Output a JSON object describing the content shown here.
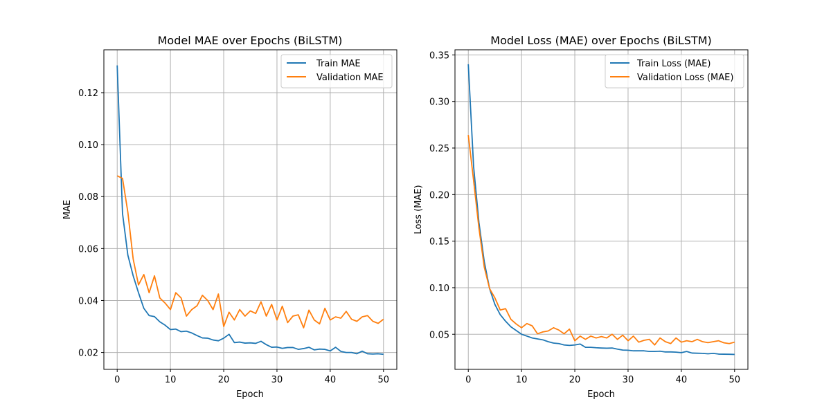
{
  "chart_data": [
    {
      "type": "line",
      "title": "Model MAE over Epochs (BiLSTM)",
      "xlabel": "Epoch",
      "ylabel": "MAE",
      "xlim": [
        -2.5,
        52.5
      ],
      "ylim": [
        0.0135,
        0.1365
      ],
      "xticks": [
        0,
        10,
        20,
        30,
        40,
        50
      ],
      "xtick_labels": [
        "0",
        "10",
        "20",
        "30",
        "40",
        "50"
      ],
      "yticks": [
        0.02,
        0.04,
        0.06,
        0.08,
        0.1,
        0.12
      ],
      "ytick_labels": [
        "0.02",
        "0.04",
        "0.06",
        "0.08",
        "0.10",
        "0.12"
      ],
      "grid": true,
      "legend_position": "top-right",
      "series": [
        {
          "name": "Train MAE",
          "color": "#1f77b4",
          "x": [
            0,
            1,
            2,
            3,
            4,
            5,
            6,
            7,
            8,
            9,
            10,
            11,
            12,
            13,
            14,
            15,
            16,
            17,
            18,
            19,
            20,
            21,
            22,
            23,
            24,
            25,
            26,
            27,
            28,
            29,
            30,
            31,
            32,
            33,
            34,
            35,
            36,
            37,
            38,
            39,
            40,
            41,
            42,
            43,
            44,
            45,
            46,
            47,
            48,
            49,
            50
          ],
          "y": [
            0.1305,
            0.0735,
            0.0575,
            0.0495,
            0.043,
            0.037,
            0.0342,
            0.0338,
            0.0318,
            0.0305,
            0.0288,
            0.029,
            0.028,
            0.0282,
            0.0275,
            0.0265,
            0.0256,
            0.0255,
            0.0248,
            0.0245,
            0.0255,
            0.027,
            0.0238,
            0.024,
            0.0236,
            0.0237,
            0.0235,
            0.0243,
            0.023,
            0.022,
            0.0221,
            0.0216,
            0.0219,
            0.0219,
            0.0212,
            0.0215,
            0.022,
            0.021,
            0.0213,
            0.0212,
            0.0206,
            0.022,
            0.0204,
            0.02,
            0.02,
            0.0195,
            0.0205,
            0.0195,
            0.0194,
            0.0195,
            0.0193
          ]
        },
        {
          "name": "Validation MAE",
          "color": "#ff7f0e",
          "x": [
            0,
            1,
            2,
            3,
            4,
            5,
            6,
            7,
            8,
            9,
            10,
            11,
            12,
            13,
            14,
            15,
            16,
            17,
            18,
            19,
            20,
            21,
            22,
            23,
            24,
            25,
            26,
            27,
            28,
            29,
            30,
            31,
            32,
            33,
            34,
            35,
            36,
            37,
            38,
            39,
            40,
            41,
            42,
            43,
            44,
            45,
            46,
            47,
            48,
            49,
            50
          ],
          "y": [
            0.088,
            0.087,
            0.074,
            0.056,
            0.046,
            0.05,
            0.043,
            0.0495,
            0.041,
            0.039,
            0.0365,
            0.043,
            0.041,
            0.034,
            0.0365,
            0.038,
            0.042,
            0.04,
            0.0365,
            0.0425,
            0.03,
            0.0355,
            0.0325,
            0.0365,
            0.034,
            0.036,
            0.035,
            0.0395,
            0.034,
            0.0385,
            0.0325,
            0.0378,
            0.0315,
            0.034,
            0.0345,
            0.0295,
            0.0363,
            0.0325,
            0.031,
            0.037,
            0.0325,
            0.0337,
            0.0332,
            0.0358,
            0.0328,
            0.032,
            0.0337,
            0.0342,
            0.032,
            0.0312,
            0.0328
          ]
        }
      ]
    },
    {
      "type": "line",
      "title": "Model Loss (MAE) over Epochs (BiLSTM)",
      "xlabel": "Epoch",
      "ylabel": "Loss (MAE)",
      "xlim": [
        -2.5,
        52.5
      ],
      "ylim": [
        0.0123,
        0.3555
      ],
      "xticks": [
        0,
        10,
        20,
        30,
        40,
        50
      ],
      "xtick_labels": [
        "0",
        "10",
        "20",
        "30",
        "40",
        "50"
      ],
      "yticks": [
        0.05,
        0.1,
        0.15,
        0.2,
        0.25,
        0.3,
        0.35
      ],
      "ytick_labels": [
        "0.05",
        "0.10",
        "0.15",
        "0.20",
        "0.25",
        "0.30",
        "0.35"
      ],
      "grid": true,
      "legend_position": "top-right",
      "series": [
        {
          "name": "Train Loss (MAE)",
          "color": "#1f77b4",
          "x": [
            0,
            1,
            2,
            3,
            4,
            5,
            6,
            7,
            8,
            9,
            10,
            11,
            12,
            13,
            14,
            15,
            16,
            17,
            18,
            19,
            20,
            21,
            22,
            23,
            24,
            25,
            26,
            27,
            28,
            29,
            30,
            31,
            32,
            33,
            34,
            35,
            36,
            37,
            38,
            39,
            40,
            41,
            42,
            43,
            44,
            45,
            46,
            47,
            48,
            49,
            50
          ],
          "y": [
            0.34,
            0.23,
            0.17,
            0.128,
            0.099,
            0.082,
            0.071,
            0.064,
            0.058,
            0.054,
            0.05,
            0.048,
            0.046,
            0.045,
            0.044,
            0.042,
            0.0405,
            0.04,
            0.0385,
            0.038,
            0.0385,
            0.0395,
            0.036,
            0.036,
            0.0355,
            0.0352,
            0.035,
            0.0352,
            0.034,
            0.033,
            0.0328,
            0.0322,
            0.0322,
            0.0322,
            0.0315,
            0.0315,
            0.0318,
            0.031,
            0.031,
            0.0308,
            0.0302,
            0.0315,
            0.0298,
            0.0296,
            0.0295,
            0.029,
            0.0295,
            0.0287,
            0.0286,
            0.0285,
            0.0283
          ]
        },
        {
          "name": "Validation Loss (MAE)",
          "color": "#ff7f0e",
          "x": [
            0,
            1,
            2,
            3,
            4,
            5,
            6,
            7,
            8,
            9,
            10,
            11,
            12,
            13,
            14,
            15,
            16,
            17,
            18,
            19,
            20,
            21,
            22,
            23,
            24,
            25,
            26,
            27,
            28,
            29,
            30,
            31,
            32,
            33,
            34,
            35,
            36,
            37,
            38,
            39,
            40,
            41,
            42,
            43,
            44,
            45,
            46,
            47,
            48,
            49,
            50
          ],
          "y": [
            0.264,
            0.215,
            0.164,
            0.122,
            0.099,
            0.089,
            0.076,
            0.0775,
            0.066,
            0.061,
            0.057,
            0.0615,
            0.059,
            0.0505,
            0.0525,
            0.0535,
            0.057,
            0.0545,
            0.0505,
            0.0555,
            0.043,
            0.048,
            0.0445,
            0.048,
            0.046,
            0.0475,
            0.046,
            0.05,
            0.0445,
            0.049,
            0.043,
            0.048,
            0.0415,
            0.0435,
            0.0445,
            0.0385,
            0.046,
            0.042,
            0.04,
            0.046,
            0.0415,
            0.043,
            0.042,
            0.0445,
            0.042,
            0.041,
            0.042,
            0.043,
            0.0408,
            0.04,
            0.0415
          ]
        }
      ]
    }
  ]
}
